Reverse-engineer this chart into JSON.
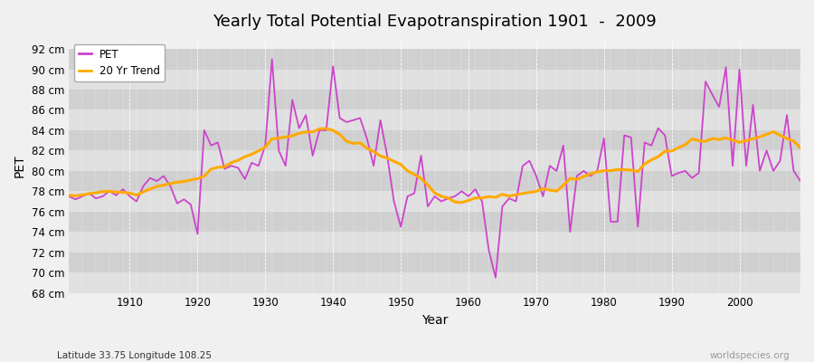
{
  "title": "Yearly Total Potential Evapotranspiration 1901  -  2009",
  "xlabel": "Year",
  "ylabel": "PET",
  "subtitle": "Latitude 33.75 Longitude 108.25",
  "watermark": "worldspecies.org",
  "pet_color": "#cc44cc",
  "trend_color": "#ffaa00",
  "bg_color": "#f0f0f0",
  "plot_bg_color": "#f0f0f0",
  "band_color_light": "#e8e8e8",
  "band_color_dark": "#d8d8d8",
  "grid_color": "#ffffff",
  "ylim": [
    68,
    93
  ],
  "xlim": [
    1901,
    2009
  ],
  "yticks": [
    68,
    70,
    72,
    74,
    76,
    78,
    80,
    82,
    84,
    86,
    88,
    90,
    92
  ],
  "ytick_labels": [
    "68 cm",
    "70 cm",
    "72 cm",
    "74 cm",
    "76 cm",
    "78 cm",
    "80 cm",
    "82 cm",
    "84 cm",
    "86 cm",
    "88 cm",
    "90 cm",
    "92 cm"
  ],
  "xticks": [
    1910,
    1920,
    1930,
    1940,
    1950,
    1960,
    1970,
    1980,
    1990,
    2000
  ],
  "years": [
    1901,
    1902,
    1903,
    1904,
    1905,
    1906,
    1907,
    1908,
    1909,
    1910,
    1911,
    1912,
    1913,
    1914,
    1915,
    1916,
    1917,
    1918,
    1919,
    1920,
    1921,
    1922,
    1923,
    1924,
    1925,
    1926,
    1927,
    1928,
    1929,
    1930,
    1931,
    1932,
    1933,
    1934,
    1935,
    1936,
    1937,
    1938,
    1939,
    1940,
    1941,
    1942,
    1943,
    1944,
    1945,
    1946,
    1947,
    1948,
    1949,
    1950,
    1951,
    1952,
    1953,
    1954,
    1955,
    1956,
    1957,
    1958,
    1959,
    1960,
    1961,
    1962,
    1963,
    1964,
    1965,
    1966,
    1967,
    1968,
    1969,
    1970,
    1971,
    1972,
    1973,
    1974,
    1975,
    1976,
    1977,
    1978,
    1979,
    1980,
    1981,
    1982,
    1983,
    1984,
    1985,
    1986,
    1987,
    1988,
    1989,
    1990,
    1991,
    1992,
    1993,
    1994,
    1995,
    1996,
    1997,
    1998,
    1999,
    2000,
    2001,
    2002,
    2003,
    2004,
    2005,
    2006,
    2007,
    2008,
    2009
  ],
  "pet_values": [
    77.5,
    77.2,
    77.5,
    77.8,
    77.3,
    77.5,
    78.0,
    77.6,
    78.2,
    77.5,
    77.0,
    78.5,
    79.3,
    79.0,
    79.5,
    78.5,
    76.8,
    77.2,
    76.7,
    73.8,
    84.0,
    82.5,
    82.8,
    80.2,
    80.5,
    80.3,
    79.2,
    80.8,
    80.5,
    82.5,
    91.0,
    82.0,
    80.5,
    87.0,
    84.2,
    85.5,
    81.5,
    84.0,
    84.0,
    90.3,
    85.2,
    84.8,
    85.0,
    85.2,
    83.2,
    80.5,
    85.0,
    81.5,
    77.0,
    74.5,
    77.5,
    77.8,
    81.5,
    76.5,
    77.5,
    77.0,
    77.3,
    77.5,
    78.0,
    77.5,
    78.2,
    77.0,
    72.2,
    69.5,
    76.5,
    77.3,
    77.0,
    80.5,
    81.0,
    79.5,
    77.5,
    80.5,
    80.0,
    82.5,
    74.0,
    79.5,
    80.0,
    79.5,
    80.0,
    83.2,
    75.0,
    75.0,
    83.5,
    83.3,
    74.5,
    82.8,
    82.5,
    84.2,
    83.5,
    79.5,
    79.8,
    80.0,
    79.3,
    79.8,
    88.8,
    87.5,
    86.3,
    90.2,
    80.5,
    90.0,
    80.5,
    86.5,
    80.0,
    82.0,
    80.0,
    81.0,
    85.5,
    80.0,
    79.0
  ]
}
